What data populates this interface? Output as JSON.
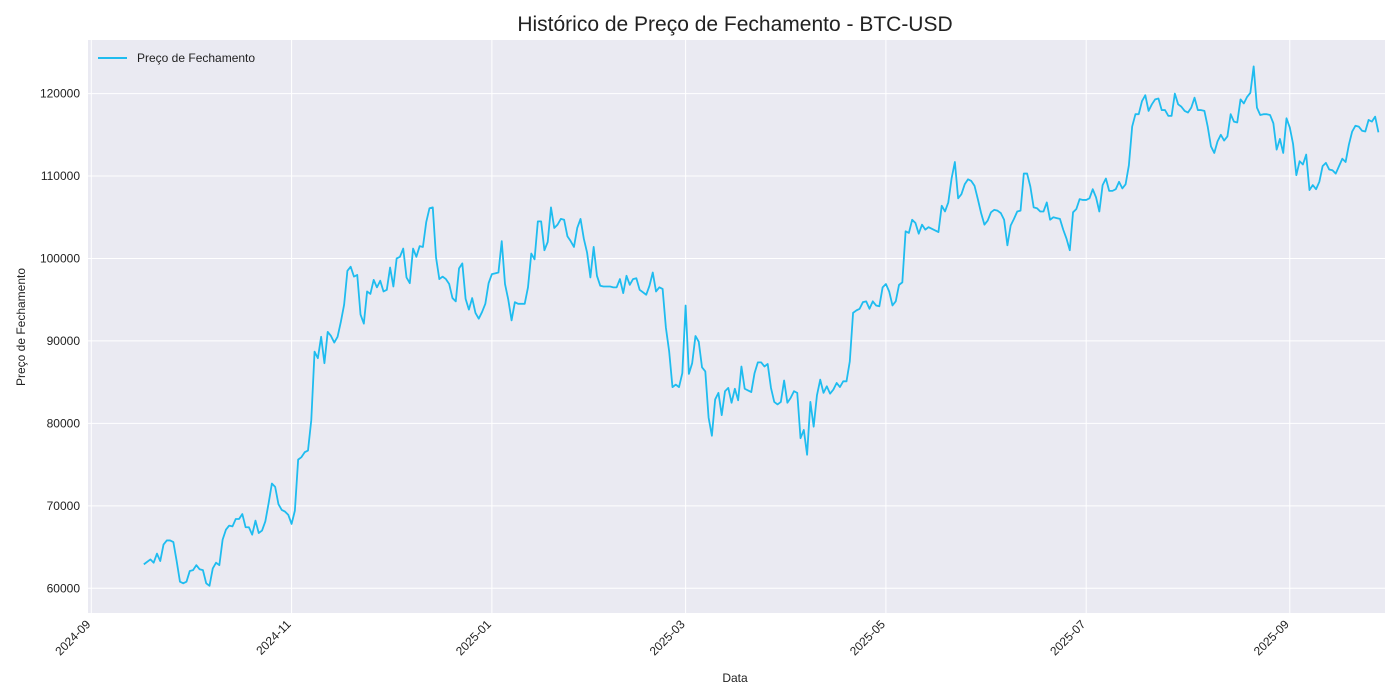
{
  "chart_data": {
    "type": "line",
    "title": "Histórico de Preço de Fechamento - BTC-USD",
    "xlabel": "Data",
    "ylabel": "Preço de Fechamento",
    "xlim": [
      "2024-08-31",
      "2025-09-30"
    ],
    "ylim": [
      57000,
      126500
    ],
    "grid": true,
    "legend": "top-left",
    "x_ticks": [
      "2024-09",
      "2024-11",
      "2025-01",
      "2025-03",
      "2025-05",
      "2025-07",
      "2025-09"
    ],
    "y_ticks": [
      60000,
      70000,
      80000,
      90000,
      100000,
      110000,
      120000
    ],
    "series": [
      {
        "name": "Preço de Fechamento",
        "color": "#1fbcef",
        "start_date": "2024-09-17",
        "values": [
          62900,
          63200,
          63500,
          63100,
          64200,
          63300,
          65300,
          65800,
          65800,
          65600,
          63300,
          60800,
          60600,
          60800,
          62100,
          62200,
          62800,
          62300,
          62200,
          60600,
          60300,
          62400,
          63100,
          62800,
          65900,
          67100,
          67600,
          67500,
          68400,
          68400,
          69000,
          67400,
          67400,
          66500,
          68200,
          66700,
          67000,
          68100,
          70300,
          72700,
          72300,
          70200,
          69500,
          69300,
          68900,
          67800,
          69400,
          75600,
          75900,
          76500,
          76700,
          80400,
          88700,
          87900,
          90500,
          87300,
          91100,
          90600,
          89800,
          90500,
          92300,
          94400,
          98500,
          99000,
          97800,
          98000,
          93200,
          92100,
          96000,
          95700,
          97400,
          96500,
          97300,
          96000,
          96200,
          98900,
          96600,
          100000,
          100200,
          101200,
          97700,
          97000,
          101200,
          100200,
          101500,
          101400,
          104400,
          106100,
          106200,
          100100,
          97500,
          97800,
          97500,
          96900,
          95200,
          94800,
          98800,
          99400,
          95100,
          93800,
          95200,
          93400,
          92700,
          93500,
          94500,
          97000,
          98100,
          98200,
          98300,
          102100,
          96900,
          95000,
          92500,
          94700,
          94500,
          94500,
          94500,
          96500,
          100600,
          99900,
          104500,
          104500,
          101000,
          102000,
          106200,
          103700,
          104100,
          104800,
          104700,
          102700,
          102100,
          101400,
          103700,
          104800,
          102400,
          100700,
          97700,
          101400,
          97900,
          96700,
          96600,
          96600,
          96600,
          96500,
          96500,
          97500,
          95800,
          97900,
          96800,
          97500,
          97600,
          96200,
          95900,
          95600,
          96700,
          98300,
          96000,
          96500,
          96300,
          91600,
          88700,
          84400,
          84700,
          84400,
          86100,
          94300,
          86000,
          87300,
          90600,
          89900,
          86800,
          86300,
          80700,
          78500,
          82900,
          83700,
          81000,
          83900,
          84300,
          82500,
          84200,
          82800,
          86900,
          84200,
          84000,
          83800,
          86100,
          87400,
          87400,
          86900,
          87200,
          84300,
          82600,
          82300,
          82600,
          85200,
          82500,
          83100,
          83900,
          83700,
          78200,
          79200,
          76200,
          82600,
          79600,
          83400,
          85300,
          83700,
          84500,
          83600,
          84100,
          84900,
          84400,
          85100,
          85100,
          87500,
          93400,
          93700,
          93900,
          94700,
          94800,
          93900,
          94800,
          94300,
          94200,
          96500,
          96900,
          96000,
          94300,
          94800,
          96800,
          97100,
          103300,
          103100,
          104700,
          104300,
          103000,
          104100,
          103500,
          103800,
          103600,
          103400,
          103200,
          106400,
          105700,
          106800,
          109700,
          111700,
          107300,
          107800,
          109000,
          109600,
          109400,
          108800,
          107200,
          105500,
          104100,
          104600,
          105600,
          105900,
          105800,
          105500,
          104700,
          101600,
          104000,
          104800,
          105700,
          105800,
          110300,
          110300,
          108700,
          106200,
          106100,
          105700,
          105700,
          106800,
          104700,
          105000,
          104900,
          104800,
          103500,
          102400,
          101000,
          105600,
          106000,
          107200,
          107100,
          107100,
          107300,
          108400,
          107400,
          105700,
          108900,
          109700,
          108200,
          108200,
          108400,
          109300,
          108500,
          109000,
          111300,
          116000,
          117500,
          117500,
          119100,
          119800,
          117900,
          118700,
          119300,
          119400,
          118000,
          118000,
          117300,
          117300,
          120000,
          118700,
          118400,
          117900,
          117700,
          118300,
          119500,
          118000,
          118000,
          117900,
          116000,
          113600,
          112800,
          114200,
          115000,
          114300,
          114800,
          117500,
          116600,
          116500,
          119300,
          118800,
          119600,
          120100,
          123300,
          118300,
          117400,
          117500,
          117500,
          117400,
          116400,
          113200,
          114500,
          112800,
          117000,
          115900,
          113900,
          110100,
          111800,
          111400,
          112600,
          108300,
          108900,
          108400,
          109300,
          111200,
          111600,
          110800,
          110700,
          110300,
          111200,
          112100,
          111700,
          113800,
          115400,
          116100,
          116000,
          115500,
          115400,
          116800,
          116600,
          117200,
          115300
        ]
      }
    ]
  }
}
